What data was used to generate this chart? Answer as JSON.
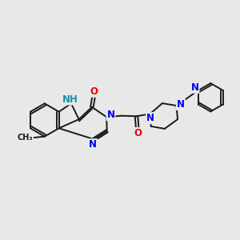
{
  "bg_color": "#e8e8e8",
  "bond_color": "#1a1a1a",
  "bond_width": 1.4,
  "dbo": 0.06,
  "atom_colors": {
    "N": "#0000ee",
    "O": "#ee0000",
    "NH": "#2090a0",
    "C": "#1a1a1a"
  },
  "fs": 8.5,
  "fs2": 7.0
}
